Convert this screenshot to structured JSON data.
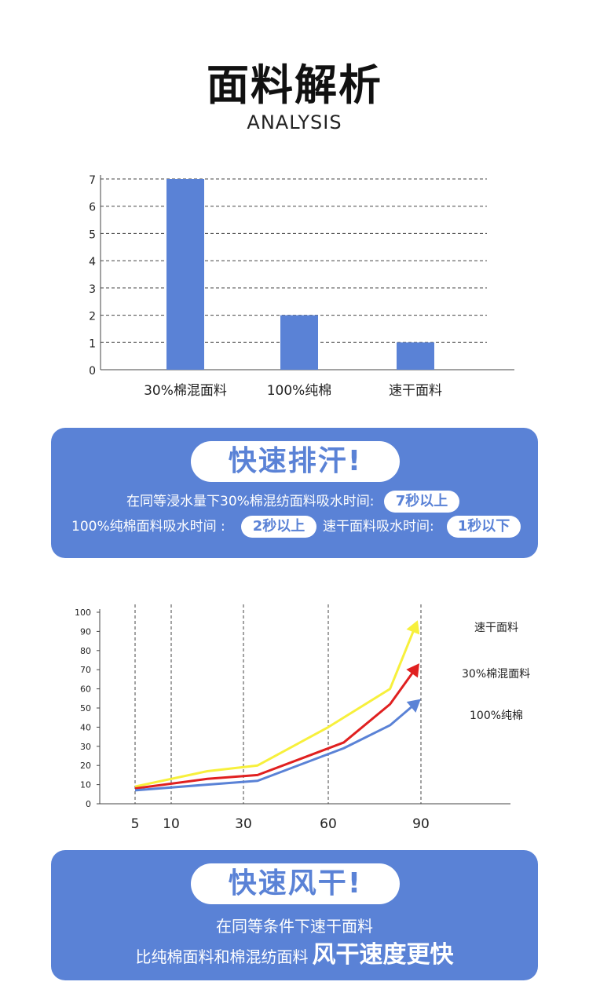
{
  "header": {
    "title": "面料解析",
    "subtitle": "ANALYSIS"
  },
  "chart_data": [
    {
      "type": "bar",
      "categories": [
        "30%棉混面料",
        "100%纯棉",
        "速干面料"
      ],
      "values": [
        7,
        2,
        1
      ],
      "yticks": [
        0,
        1,
        2,
        3,
        4,
        5,
        6,
        7
      ],
      "ylim": [
        0,
        7
      ],
      "grid": "dashed horizontal",
      "bar_color": "#5a82d6"
    },
    {
      "type": "line",
      "xticks": [
        5,
        10,
        30,
        60,
        90
      ],
      "yticks": [
        0,
        10,
        20,
        30,
        40,
        50,
        60,
        70,
        80,
        90,
        100
      ],
      "ylim": [
        0,
        100
      ],
      "grid": "dashed vertical",
      "series": [
        {
          "name": "速干面料",
          "color": "#f7f03c",
          "x": [
            5,
            20,
            35,
            60,
            80,
            88
          ],
          "values": [
            9,
            17,
            20,
            40,
            60,
            92
          ]
        },
        {
          "name": "30%棉混面料",
          "color": "#e02020",
          "x": [
            5,
            20,
            35,
            65,
            80,
            88
          ],
          "values": [
            8,
            13,
            15,
            32,
            52,
            70
          ]
        },
        {
          "name": "100%纯棉",
          "color": "#5a82d6",
          "x": [
            5,
            20,
            35,
            65,
            80,
            88
          ],
          "values": [
            7,
            10,
            12,
            29,
            41,
            52
          ]
        }
      ]
    }
  ],
  "panel1": {
    "title": "快速排汗!",
    "line1": "在同等浸水量下30%棉混纺面料吸水时间:",
    "tag1": "7秒以上",
    "line2a": "100%纯棉面料吸水时间 :",
    "tag2": "2秒以上",
    "line2b": "速干面料吸水时间:",
    "tag3": "1秒以下"
  },
  "panel2": {
    "title": "快速风干!",
    "line1": "在同等条件下速干面料",
    "line2a": "比纯棉面料和棉混纺面料",
    "line2b": "风干速度更快"
  }
}
